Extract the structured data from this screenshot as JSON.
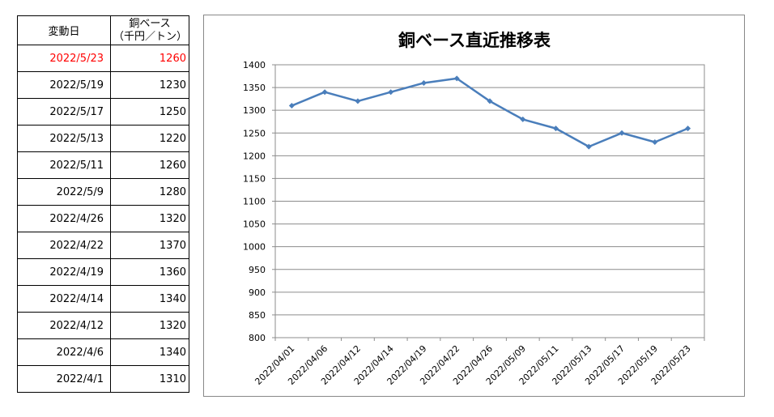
{
  "table": {
    "header_date": "変動日",
    "header_value_line1": "銅ベース",
    "header_value_line2": "（千円／トン）",
    "highlight_color": "#ff0000",
    "rows": [
      {
        "date": "2022/5/23",
        "value": "1260"
      },
      {
        "date": "2022/5/19",
        "value": "1230"
      },
      {
        "date": "2022/5/17",
        "value": "1250"
      },
      {
        "date": "2022/5/13",
        "value": "1220"
      },
      {
        "date": "2022/5/11",
        "value": "1260"
      },
      {
        "date": "2022/5/9",
        "value": "1280"
      },
      {
        "date": "2022/4/26",
        "value": "1320"
      },
      {
        "date": "2022/4/22",
        "value": "1370"
      },
      {
        "date": "2022/4/19",
        "value": "1360"
      },
      {
        "date": "2022/4/14",
        "value": "1340"
      },
      {
        "date": "2022/4/12",
        "value": "1320"
      },
      {
        "date": "2022/4/6",
        "value": "1340"
      },
      {
        "date": "2022/4/1",
        "value": "1310"
      }
    ]
  },
  "chart_data": {
    "type": "line",
    "title": "銅ベース直近推移表",
    "categories": [
      "2022/04/01",
      "2022/04/06",
      "2022/04/12",
      "2022/04/14",
      "2022/04/19",
      "2022/04/22",
      "2022/04/26",
      "2022/05/09",
      "2022/05/11",
      "2022/05/13",
      "2022/05/17",
      "2022/05/19",
      "2022/05/23"
    ],
    "series": [
      {
        "values": [
          1310,
          1340,
          1320,
          1340,
          1360,
          1370,
          1320,
          1280,
          1260,
          1220,
          1250,
          1230,
          1260
        ],
        "color": "#4a7ebb"
      }
    ],
    "ylim": [
      800,
      1400
    ],
    "yticks": [
      800,
      850,
      900,
      950,
      1000,
      1050,
      1100,
      1150,
      1200,
      1250,
      1300,
      1350,
      1400
    ],
    "marker": "diamond",
    "grid": true,
    "xlabel": "",
    "ylabel": ""
  }
}
